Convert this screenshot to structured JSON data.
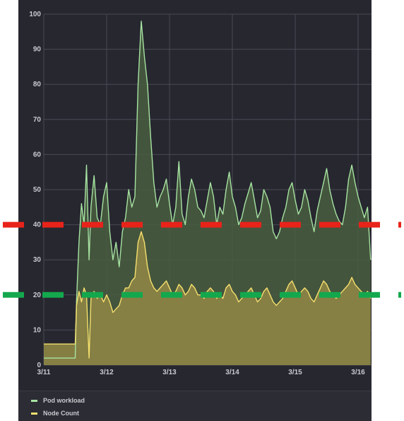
{
  "chart_data": {
    "type": "area",
    "title": "",
    "xlabel": "",
    "ylabel": "",
    "ylim": [
      0,
      100
    ],
    "yticks": [
      0,
      10,
      20,
      30,
      40,
      50,
      60,
      70,
      80,
      90,
      100
    ],
    "xticks": [
      "3/11",
      "3/12",
      "3/13",
      "3/14",
      "3/15",
      "3/16"
    ],
    "x_domain": [
      0,
      5.2
    ],
    "grid": true,
    "legend_position": "bottom",
    "series": [
      {
        "name": "Pod workload",
        "color": "#a6e3a1",
        "fill": "#4a5e3f",
        "x": [
          0,
          0.4,
          0.5,
          0.52,
          0.56,
          0.6,
          0.64,
          0.68,
          0.72,
          0.75,
          0.8,
          0.85,
          0.9,
          0.95,
          1.0,
          1.05,
          1.1,
          1.15,
          1.2,
          1.25,
          1.3,
          1.35,
          1.4,
          1.45,
          1.5,
          1.55,
          1.6,
          1.65,
          1.7,
          1.75,
          1.8,
          1.85,
          1.9,
          1.95,
          2.0,
          2.05,
          2.1,
          2.15,
          2.2,
          2.25,
          2.3,
          2.35,
          2.4,
          2.45,
          2.5,
          2.55,
          2.6,
          2.65,
          2.7,
          2.75,
          2.8,
          2.85,
          2.9,
          2.95,
          3.0,
          3.05,
          3.1,
          3.15,
          3.2,
          3.25,
          3.3,
          3.35,
          3.4,
          3.45,
          3.5,
          3.55,
          3.6,
          3.65,
          3.7,
          3.75,
          3.8,
          3.85,
          3.9,
          3.95,
          4.0,
          4.05,
          4.1,
          4.15,
          4.2,
          4.25,
          4.3,
          4.35,
          4.4,
          4.45,
          4.5,
          4.55,
          4.6,
          4.65,
          4.7,
          4.75,
          4.8,
          4.85,
          4.9,
          4.95,
          5.0,
          5.05,
          5.1,
          5.15,
          5.2
        ],
        "values": [
          2,
          2,
          2,
          18,
          35,
          46,
          40,
          57,
          30,
          45,
          54,
          42,
          40,
          48,
          52,
          38,
          30,
          35,
          28,
          38,
          42,
          50,
          45,
          48,
          80,
          98,
          88,
          80,
          65,
          52,
          45,
          48,
          50,
          53,
          46,
          40,
          45,
          58,
          43,
          40,
          48,
          53,
          50,
          45,
          44,
          42,
          47,
          52,
          48,
          40,
          45,
          43,
          50,
          55,
          48,
          45,
          40,
          42,
          46,
          49,
          52,
          47,
          42,
          44,
          50,
          48,
          45,
          38,
          36,
          38,
          42,
          45,
          50,
          52,
          47,
          43,
          45,
          50,
          47,
          42,
          38,
          44,
          48,
          52,
          56,
          50,
          46,
          43,
          41,
          40,
          45,
          53,
          57,
          52,
          48,
          45,
          42,
          45,
          30
        ]
      },
      {
        "name": "Node Count",
        "color": "#f5e06e",
        "fill": "#8a8345",
        "x": [
          0,
          0.4,
          0.5,
          0.52,
          0.56,
          0.6,
          0.64,
          0.68,
          0.72,
          0.75,
          0.8,
          0.85,
          0.9,
          0.95,
          1.0,
          1.05,
          1.1,
          1.15,
          1.2,
          1.25,
          1.3,
          1.35,
          1.4,
          1.45,
          1.5,
          1.55,
          1.6,
          1.65,
          1.7,
          1.75,
          1.8,
          1.85,
          1.9,
          1.95,
          2.0,
          2.05,
          2.1,
          2.15,
          2.2,
          2.25,
          2.3,
          2.35,
          2.4,
          2.45,
          2.5,
          2.55,
          2.6,
          2.65,
          2.7,
          2.75,
          2.8,
          2.85,
          2.9,
          2.95,
          3.0,
          3.05,
          3.1,
          3.15,
          3.2,
          3.25,
          3.3,
          3.35,
          3.4,
          3.45,
          3.5,
          3.55,
          3.6,
          3.65,
          3.7,
          3.75,
          3.8,
          3.85,
          3.9,
          3.95,
          4.0,
          4.05,
          4.1,
          4.15,
          4.2,
          4.25,
          4.3,
          4.35,
          4.4,
          4.45,
          4.5,
          4.55,
          4.6,
          4.65,
          4.7,
          4.75,
          4.8,
          4.85,
          4.9,
          4.95,
          5.0,
          5.05,
          5.1,
          5.15,
          5.2
        ],
        "values": [
          6,
          6,
          6,
          17,
          21,
          18,
          22,
          20,
          2,
          19,
          21,
          19,
          20,
          18,
          20,
          18,
          15,
          16,
          17,
          20,
          22,
          22,
          24,
          25,
          35,
          38,
          35,
          28,
          24,
          22,
          21,
          22,
          23,
          24,
          22,
          20,
          21,
          23,
          22,
          20,
          21,
          23,
          22,
          20,
          20,
          19,
          21,
          22,
          21,
          19,
          20,
          19,
          22,
          23,
          21,
          20,
          18,
          19,
          20,
          21,
          22,
          20,
          18,
          19,
          21,
          22,
          20,
          18,
          17,
          18,
          19,
          21,
          23,
          24,
          22,
          20,
          21,
          22,
          21,
          19,
          18,
          20,
          22,
          24,
          23,
          21,
          20,
          19,
          20,
          21,
          22,
          23,
          25,
          23,
          22,
          21,
          20,
          21,
          19
        ]
      }
    ],
    "annotations": [
      {
        "type": "horizontal-dashed-line",
        "value": 40,
        "color": "#e8231a"
      },
      {
        "type": "horizontal-dashed-line",
        "value": 20,
        "color": "#13a84d"
      }
    ]
  }
}
